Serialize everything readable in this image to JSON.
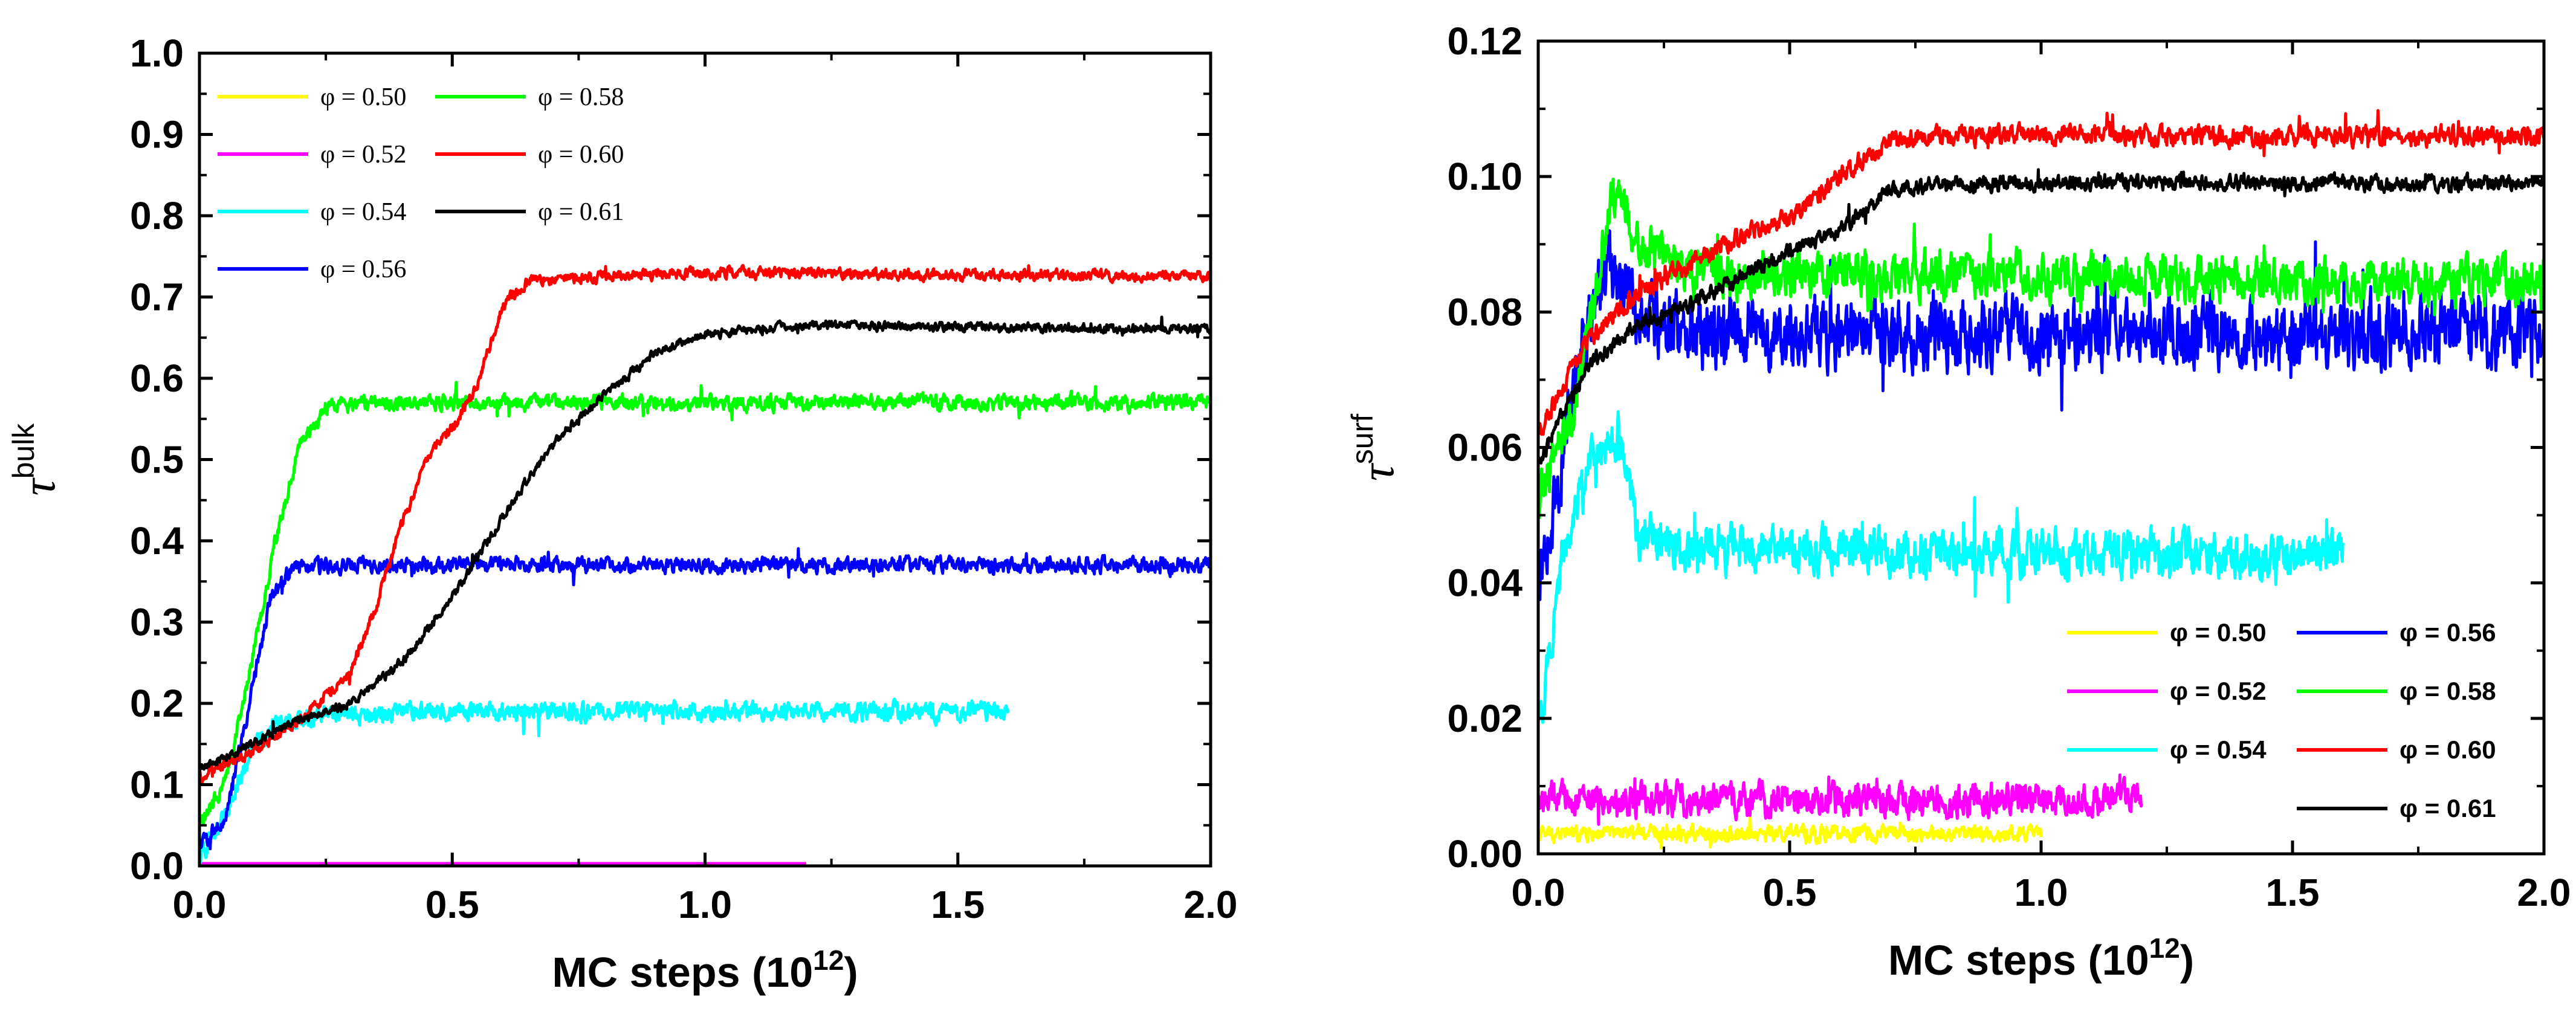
{
  "chart_data": [
    {
      "type": "line",
      "panel": "left",
      "title": "",
      "xlabel": "MC steps (10",
      "xlabel_sup": "12",
      "xlabel_end": ")",
      "ylabel": "τ",
      "ylabel_sup": "bulk",
      "xlim": [
        0.0,
        2.0
      ],
      "ylim": [
        0.0,
        1.0
      ],
      "xticks": [
        "0.0",
        "0.5",
        "1.0",
        "1.5",
        "2.0"
      ],
      "yticks": [
        "0.0",
        "0.1",
        "0.2",
        "0.3",
        "0.4",
        "0.5",
        "0.6",
        "0.7",
        "0.8",
        "0.9",
        "1.0"
      ],
      "legend_position": "top-left",
      "series": [
        {
          "name": "φ = 0.50",
          "color": "#ffff00",
          "xmax": 1.2,
          "noise": 0.0,
          "points": [
            [
              0,
              0.001
            ],
            [
              1.2,
              0.001
            ]
          ]
        },
        {
          "name": "φ = 0.52",
          "color": "#ff00ff",
          "xmax": 1.2,
          "noise": 0.0,
          "points": [
            [
              0,
              0.003
            ],
            [
              1.2,
              0.003
            ]
          ]
        },
        {
          "name": "φ = 0.54",
          "color": "#00ffff",
          "xmax": 1.6,
          "noise": 0.012,
          "points": [
            [
              0,
              0.01
            ],
            [
              0.05,
              0.06
            ],
            [
              0.1,
              0.14
            ],
            [
              0.15,
              0.175
            ],
            [
              0.25,
              0.185
            ],
            [
              0.5,
              0.19
            ],
            [
              1.0,
              0.19
            ],
            [
              1.6,
              0.19
            ]
          ]
        },
        {
          "name": "φ = 0.56",
          "color": "#0000ff",
          "xmax": 2.0,
          "noise": 0.01,
          "points": [
            [
              0,
              0.02
            ],
            [
              0.05,
              0.06
            ],
            [
              0.1,
              0.2
            ],
            [
              0.14,
              0.33
            ],
            [
              0.18,
              0.365
            ],
            [
              0.3,
              0.37
            ],
            [
              2.0,
              0.37
            ]
          ]
        },
        {
          "name": "φ = 0.58",
          "color": "#00ff00",
          "xmax": 2.0,
          "noise": 0.01,
          "points": [
            [
              0,
              0.05
            ],
            [
              0.05,
              0.1
            ],
            [
              0.1,
              0.24
            ],
            [
              0.15,
              0.4
            ],
            [
              0.2,
              0.52
            ],
            [
              0.25,
              0.565
            ],
            [
              0.35,
              0.57
            ],
            [
              2.0,
              0.57
            ]
          ]
        },
        {
          "name": "φ = 0.60",
          "color": "#ff0000",
          "xmax": 2.0,
          "noise": 0.007,
          "points": [
            [
              0,
              0.11
            ],
            [
              0.1,
              0.14
            ],
            [
              0.2,
              0.18
            ],
            [
              0.3,
              0.24
            ],
            [
              0.35,
              0.32
            ],
            [
              0.4,
              0.42
            ],
            [
              0.45,
              0.5
            ],
            [
              0.5,
              0.54
            ],
            [
              0.55,
              0.59
            ],
            [
              0.6,
              0.69
            ],
            [
              0.65,
              0.72
            ],
            [
              0.8,
              0.725
            ],
            [
              1.0,
              0.73
            ],
            [
              2.0,
              0.725
            ]
          ]
        },
        {
          "name": "φ = 0.61",
          "color": "#000000",
          "xmax": 2.0,
          "noise": 0.006,
          "points": [
            [
              0,
              0.12
            ],
            [
              0.1,
              0.15
            ],
            [
              0.2,
              0.18
            ],
            [
              0.3,
              0.2
            ],
            [
              0.4,
              0.25
            ],
            [
              0.5,
              0.33
            ],
            [
              0.6,
              0.43
            ],
            [
              0.7,
              0.52
            ],
            [
              0.8,
              0.58
            ],
            [
              0.9,
              0.63
            ],
            [
              1.0,
              0.655
            ],
            [
              1.2,
              0.665
            ],
            [
              2.0,
              0.66
            ]
          ]
        }
      ]
    },
    {
      "type": "line",
      "panel": "right",
      "title": "",
      "xlabel": "MC steps (10",
      "xlabel_sup": "12",
      "xlabel_end": ")",
      "ylabel": "τ",
      "ylabel_sup": "surf",
      "xlim": [
        0.0,
        2.0
      ],
      "ylim": [
        0.0,
        0.12
      ],
      "xticks": [
        "0.0",
        "0.5",
        "1.0",
        "1.5",
        "2.0"
      ],
      "yticks": [
        "0.00",
        "0.02",
        "0.04",
        "0.06",
        "0.08",
        "0.10",
        "0.12"
      ],
      "legend_position": "bottom-right",
      "series": [
        {
          "name": "φ = 0.50",
          "color": "#ffff00",
          "xmax": 1.0,
          "noise": 0.0012,
          "points": [
            [
              0,
              0.003
            ],
            [
              1.0,
              0.003
            ]
          ]
        },
        {
          "name": "φ = 0.52",
          "color": "#ff00ff",
          "xmax": 1.2,
          "noise": 0.0025,
          "points": [
            [
              0,
              0.008
            ],
            [
              1.2,
              0.008
            ]
          ]
        },
        {
          "name": "φ = 0.54",
          "color": "#00ffff",
          "xmax": 1.6,
          "noise": 0.0035,
          "points": [
            [
              0,
              0.018
            ],
            [
              0.05,
              0.045
            ],
            [
              0.1,
              0.058
            ],
            [
              0.16,
              0.062
            ],
            [
              0.2,
              0.047
            ],
            [
              0.3,
              0.045
            ],
            [
              1.6,
              0.044
            ]
          ]
        },
        {
          "name": "φ = 0.56",
          "color": "#0000ff",
          "xmax": 2.0,
          "noise": 0.0055,
          "points": [
            [
              0,
              0.038
            ],
            [
              0.05,
              0.06
            ],
            [
              0.1,
              0.078
            ],
            [
              0.14,
              0.086
            ],
            [
              0.2,
              0.08
            ],
            [
              0.3,
              0.077
            ],
            [
              2.0,
              0.077
            ]
          ]
        },
        {
          "name": "φ = 0.58",
          "color": "#00ff00",
          "xmax": 2.0,
          "noise": 0.0035,
          "points": [
            [
              0,
              0.052
            ],
            [
              0.07,
              0.065
            ],
            [
              0.12,
              0.085
            ],
            [
              0.15,
              0.098
            ],
            [
              0.2,
              0.09
            ],
            [
              0.3,
              0.086
            ],
            [
              2.0,
              0.084
            ]
          ]
        },
        {
          "name": "φ = 0.60",
          "color": "#ff0000",
          "xmax": 2.0,
          "noise": 0.0015,
          "points": [
            [
              0,
              0.062
            ],
            [
              0.1,
              0.076
            ],
            [
              0.2,
              0.083
            ],
            [
              0.3,
              0.087
            ],
            [
              0.4,
              0.091
            ],
            [
              0.5,
              0.094
            ],
            [
              0.6,
              0.1
            ],
            [
              0.7,
              0.105
            ],
            [
              0.8,
              0.106
            ],
            [
              2.0,
              0.106
            ]
          ]
        },
        {
          "name": "φ = 0.61",
          "color": "#000000",
          "xmax": 2.0,
          "noise": 0.0012,
          "points": [
            [
              0,
              0.058
            ],
            [
              0.1,
              0.072
            ],
            [
              0.2,
              0.078
            ],
            [
              0.3,
              0.081
            ],
            [
              0.4,
              0.085
            ],
            [
              0.5,
              0.089
            ],
            [
              0.6,
              0.092
            ],
            [
              0.7,
              0.098
            ],
            [
              0.8,
              0.099
            ],
            [
              1.0,
              0.099
            ],
            [
              2.0,
              0.099
            ]
          ]
        }
      ]
    }
  ]
}
